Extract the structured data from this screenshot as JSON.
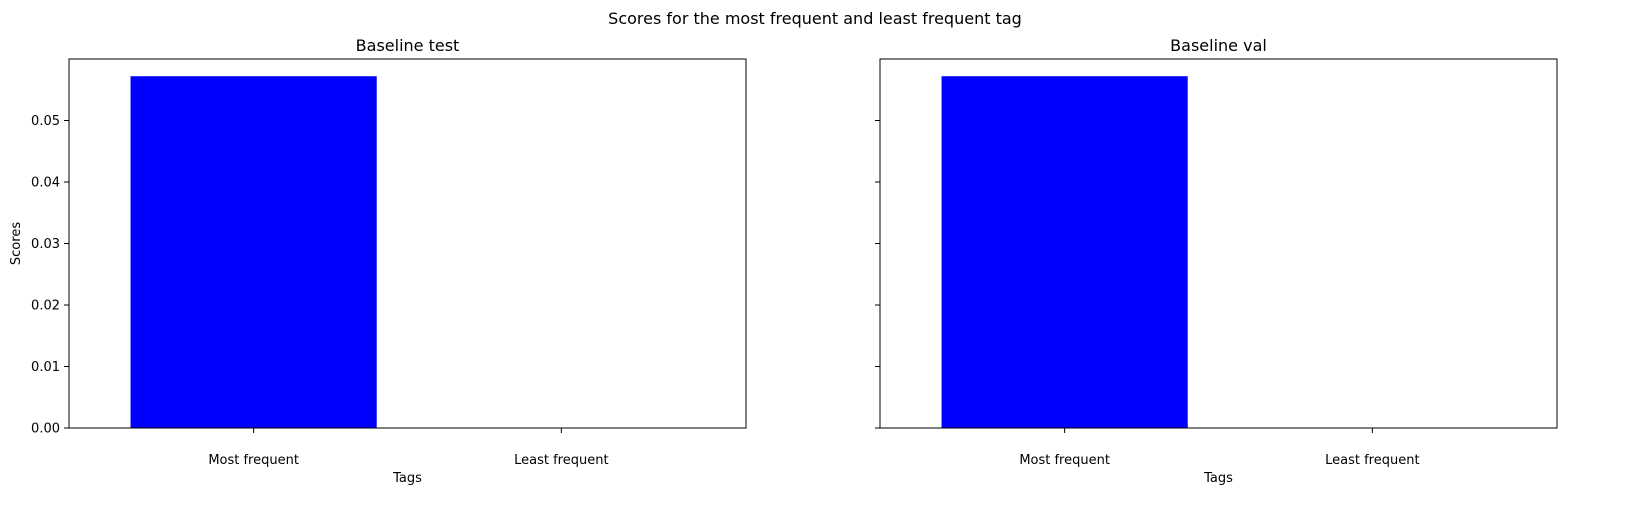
{
  "figure": {
    "suptitle": "Scores for the most frequent and least frequent tag"
  },
  "chart_data": [
    {
      "type": "bar",
      "title": "Baseline test",
      "categories": [
        "Most frequent",
        "Least frequent"
      ],
      "values": [
        0.0572,
        0.0
      ],
      "xlabel": "Tags",
      "ylabel": "Scores",
      "ylim": [
        0,
        0.06
      ],
      "yticks": [
        0.0,
        0.01,
        0.02,
        0.03,
        0.04,
        0.05
      ],
      "ytick_labels": [
        "0.00",
        "0.01",
        "0.02",
        "0.03",
        "0.04",
        "0.05"
      ],
      "show_ytick_labels": true,
      "bar_color": "#0000ff",
      "grid": false
    },
    {
      "type": "bar",
      "title": "Baseline val",
      "categories": [
        "Most frequent",
        "Least frequent"
      ],
      "values": [
        0.0572,
        0.0
      ],
      "xlabel": "Tags",
      "ylabel": "",
      "ylim": [
        0,
        0.06
      ],
      "yticks": [
        0.0,
        0.01,
        0.02,
        0.03,
        0.04,
        0.05
      ],
      "ytick_labels": [
        "",
        "",
        "",
        "",
        "",
        ""
      ],
      "show_ytick_labels": false,
      "bar_color": "#0000ff",
      "grid": false
    }
  ]
}
